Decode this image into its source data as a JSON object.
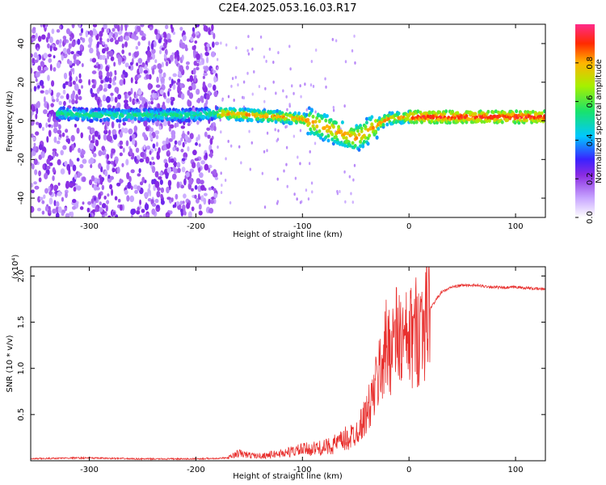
{
  "chart_data": [
    {
      "type": "heatmap",
      "title": "C2E4.2025.053.16.03.R17",
      "xlabel": "Height of straight line (km)",
      "ylabel": "Frequency (Hz)",
      "xlim": [
        -355,
        128
      ],
      "ylim": [
        -50,
        50
      ],
      "xticks": [
        -300,
        -200,
        -100,
        0,
        100
      ],
      "yticks": [
        -40,
        -20,
        0,
        20,
        40
      ],
      "colorbar": {
        "label": "Normalized spectral amplitude",
        "ticks": [
          0.0,
          0.2,
          0.4,
          0.6,
          0.8
        ],
        "range": [
          0,
          1
        ]
      },
      "features": {
        "noise_region_km": [
          -355,
          -180
        ],
        "noise_gap_km": [
          -305,
          -300
        ],
        "signal_ridge": {
          "x": [
            -330,
            -300,
            -250,
            -200,
            -180,
            -150,
            -120,
            -100,
            -80,
            -60,
            -50,
            -40,
            -30,
            -20,
            0,
            20,
            50,
            80,
            100,
            128
          ],
          "freq": [
            4,
            3,
            3,
            3,
            4,
            3,
            2,
            1,
            -3,
            -7,
            -9,
            -6,
            -2,
            1,
            2,
            2,
            2,
            2,
            2,
            2
          ]
        }
      }
    },
    {
      "type": "line",
      "xlabel": "Height of straight line (km)",
      "ylabel": "SNR (10 * v/v)",
      "yscale_label": "(x10⁴)",
      "xlim": [
        -355,
        128
      ],
      "ylim": [
        0,
        2.1
      ],
      "xticks": [
        -300,
        -200,
        -100,
        0,
        100
      ],
      "yticks": [
        0.5,
        1.0,
        1.5,
        2.0
      ],
      "series": [
        {
          "name": "SNR",
          "color": "#e8302e",
          "x": [
            -355,
            -320,
            -300,
            -250,
            -200,
            -170,
            -160,
            -150,
            -140,
            -120,
            -100,
            -80,
            -70,
            -60,
            -50,
            -45,
            -40,
            -35,
            -30,
            -25,
            -20,
            -15,
            -10,
            -5,
            0,
            10,
            20,
            30,
            40,
            50,
            60,
            70,
            80,
            90,
            100,
            110,
            120,
            128
          ],
          "y": [
            0.02,
            0.03,
            0.03,
            0.02,
            0.02,
            0.03,
            0.08,
            0.06,
            0.05,
            0.08,
            0.12,
            0.14,
            0.18,
            0.22,
            0.3,
            0.4,
            0.5,
            0.65,
            0.85,
            1.1,
            1.25,
            1.3,
            1.35,
            1.25,
            1.3,
            1.45,
            1.65,
            1.82,
            1.88,
            1.9,
            1.9,
            1.89,
            1.88,
            1.87,
            1.88,
            1.87,
            1.86,
            1.86
          ]
        }
      ]
    }
  ]
}
